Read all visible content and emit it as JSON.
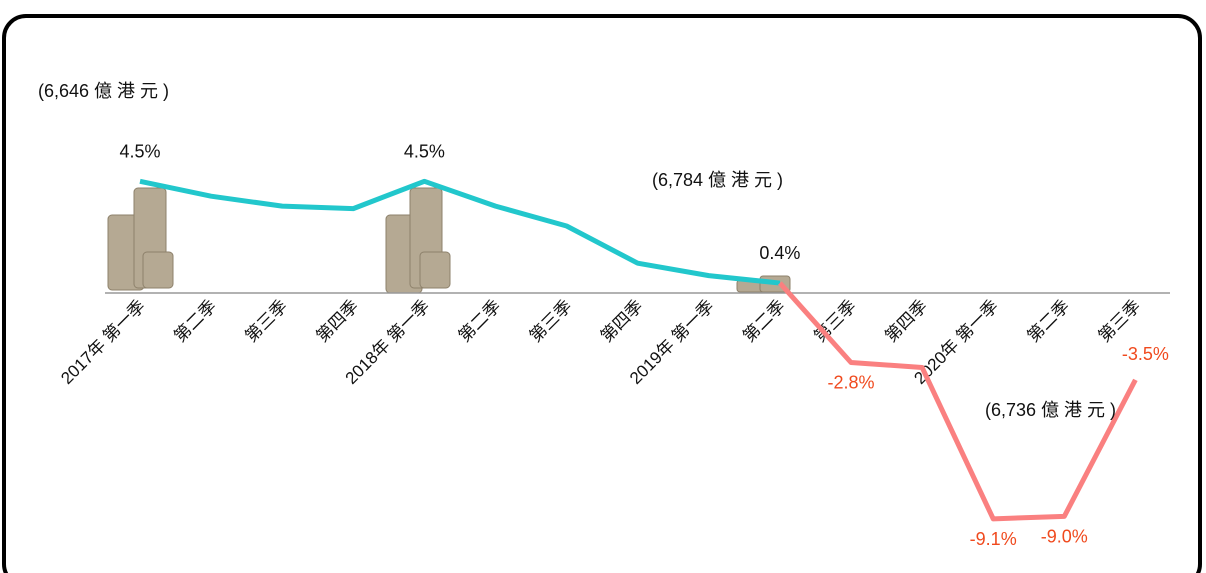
{
  "chart_data": {
    "type": "line",
    "categories": [
      "2017年 第一季",
      "第二季",
      "第三季",
      "第四季",
      "2018年 第一季",
      "第二季",
      "第三季",
      "第四季",
      "2019年 第一季",
      "第二季",
      "第三季",
      "第四季",
      "2020年 第一季",
      "第二季",
      "第三季"
    ],
    "series": [
      {
        "color": "#22c7cc",
        "values": [
          4.5,
          3.9,
          3.5,
          3.4,
          4.5,
          3.5,
          2.7,
          1.2,
          0.7,
          0.4,
          null,
          null,
          null,
          null,
          null
        ],
        "value_labels": [
          "4.5%",
          null,
          null,
          null,
          "4.5%",
          null,
          null,
          null,
          null,
          "0.4%",
          null,
          null,
          null,
          null,
          null
        ]
      },
      {
        "color": "#fa8080",
        "label_color": "#f04a1e",
        "values": [
          null,
          null,
          null,
          null,
          null,
          null,
          null,
          null,
          null,
          0.4,
          -2.8,
          -3.0,
          -9.1,
          -9.0,
          -3.5
        ],
        "value_labels": [
          null,
          null,
          null,
          null,
          null,
          null,
          null,
          null,
          null,
          null,
          "-2.8%",
          null,
          "-9.1%",
          "-9.0%",
          "-3.5%"
        ]
      }
    ],
    "annotations": [
      "(6,646 億 港 元 )",
      "(6,784 億 港 元 )",
      "(6,736 億 港 元 )"
    ],
    "ylim": [
      -11,
      11
    ]
  }
}
